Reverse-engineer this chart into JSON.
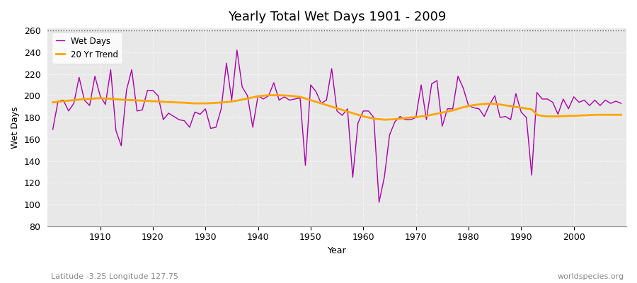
{
  "title": "Yearly Total Wet Days 1901 - 2009",
  "ylabel": "Wet Days",
  "xlabel": "Year",
  "subtitle_left": "Latitude -3.25 Longitude 127.75",
  "subtitle_right": "worldspecies.org",
  "ylim": [
    80,
    262
  ],
  "yticks": [
    80,
    100,
    120,
    140,
    160,
    180,
    200,
    220,
    240,
    260
  ],
  "bg_color": "#e8e8e8",
  "fig_color": "#ffffff",
  "line_color": "#aa00aa",
  "trend_color": "#FFA500",
  "years": [
    1901,
    1902,
    1903,
    1904,
    1905,
    1906,
    1907,
    1908,
    1909,
    1910,
    1911,
    1912,
    1913,
    1914,
    1915,
    1916,
    1917,
    1918,
    1919,
    1920,
    1921,
    1922,
    1923,
    1924,
    1925,
    1926,
    1927,
    1928,
    1929,
    1930,
    1931,
    1932,
    1933,
    1934,
    1935,
    1936,
    1937,
    1938,
    1939,
    1940,
    1941,
    1942,
    1943,
    1944,
    1945,
    1946,
    1947,
    1948,
    1949,
    1950,
    1951,
    1952,
    1953,
    1954,
    1955,
    1956,
    1957,
    1958,
    1959,
    1960,
    1961,
    1962,
    1963,
    1964,
    1965,
    1966,
    1967,
    1968,
    1969,
    1970,
    1971,
    1972,
    1973,
    1974,
    1975,
    1976,
    1977,
    1978,
    1979,
    1980,
    1981,
    1982,
    1983,
    1984,
    1985,
    1986,
    1987,
    1988,
    1989,
    1990,
    1991,
    1992,
    1993,
    1994,
    1995,
    1996,
    1997,
    1998,
    1999,
    2000,
    2001,
    2002,
    2003,
    2004,
    2005,
    2006,
    2007,
    2008,
    2009
  ],
  "wet_days": [
    169,
    195,
    196,
    186,
    193,
    217,
    196,
    191,
    218,
    200,
    192,
    224,
    168,
    154,
    205,
    224,
    186,
    187,
    205,
    205,
    200,
    178,
    184,
    181,
    178,
    177,
    171,
    185,
    183,
    188,
    170,
    171,
    188,
    230,
    196,
    242,
    208,
    200,
    171,
    200,
    197,
    200,
    212,
    196,
    199,
    196,
    197,
    198,
    136,
    210,
    204,
    193,
    196,
    225,
    186,
    182,
    188,
    125,
    175,
    186,
    186,
    180,
    102,
    125,
    164,
    176,
    181,
    178,
    178,
    180,
    210,
    178,
    211,
    214,
    172,
    188,
    188,
    218,
    207,
    191,
    189,
    188,
    181,
    192,
    200,
    180,
    181,
    178,
    202,
    185,
    180,
    127,
    203,
    197,
    197,
    194,
    183,
    197,
    188,
    199,
    194,
    196,
    191,
    196,
    191,
    196,
    193,
    195,
    193
  ],
  "trend": [
    194.0,
    194.5,
    195.0,
    195.5,
    196.0,
    196.5,
    197.0,
    197.0,
    197.5,
    197.8,
    197.5,
    197.2,
    196.8,
    196.5,
    196.2,
    196.0,
    195.8,
    195.5,
    195.3,
    195.0,
    194.8,
    194.5,
    194.2,
    194.0,
    193.8,
    193.6,
    193.3,
    193.0,
    193.0,
    193.0,
    193.2,
    193.5,
    193.8,
    194.2,
    194.8,
    195.5,
    196.5,
    197.5,
    198.5,
    199.5,
    200.0,
    200.5,
    200.5,
    200.5,
    200.3,
    200.0,
    199.5,
    199.0,
    197.5,
    196.0,
    194.5,
    193.0,
    191.5,
    190.0,
    188.5,
    187.0,
    185.5,
    184.0,
    182.5,
    181.0,
    180.0,
    179.0,
    178.5,
    178.0,
    178.2,
    178.5,
    179.0,
    179.5,
    180.0,
    180.5,
    181.0,
    181.5,
    182.5,
    183.5,
    184.5,
    185.5,
    186.5,
    188.0,
    189.5,
    190.5,
    191.5,
    192.0,
    192.5,
    192.8,
    192.5,
    192.0,
    191.2,
    190.5,
    189.8,
    189.0,
    188.2,
    187.5,
    182.5,
    181.5,
    181.0,
    181.0,
    181.0,
    181.2,
    181.5,
    181.5,
    181.8,
    182.0,
    182.2,
    182.5,
    182.5,
    182.5,
    182.5,
    182.5,
    182.5
  ]
}
